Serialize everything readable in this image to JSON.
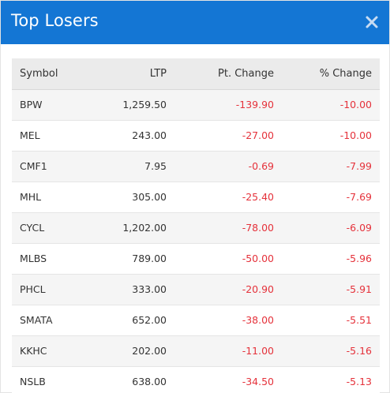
{
  "modal": {
    "title": "Top Losers"
  },
  "table": {
    "headers": {
      "symbol": "Symbol",
      "ltp": "LTP",
      "pt_change": "Pt. Change",
      "pct_change": "% Change"
    },
    "rows": [
      {
        "symbol": "BPW",
        "ltp": "1,259.50",
        "pt_change": "-139.90",
        "pct_change": "-10.00"
      },
      {
        "symbol": "MEL",
        "ltp": "243.00",
        "pt_change": "-27.00",
        "pct_change": "-10.00"
      },
      {
        "symbol": "CMF1",
        "ltp": "7.95",
        "pt_change": "-0.69",
        "pct_change": "-7.99"
      },
      {
        "symbol": "MHL",
        "ltp": "305.00",
        "pt_change": "-25.40",
        "pct_change": "-7.69"
      },
      {
        "symbol": "CYCL",
        "ltp": "1,202.00",
        "pt_change": "-78.00",
        "pct_change": "-6.09"
      },
      {
        "symbol": "MLBS",
        "ltp": "789.00",
        "pt_change": "-50.00",
        "pct_change": "-5.96"
      },
      {
        "symbol": "PHCL",
        "ltp": "333.00",
        "pt_change": "-20.90",
        "pct_change": "-5.91"
      },
      {
        "symbol": "SMATA",
        "ltp": "652.00",
        "pt_change": "-38.00",
        "pct_change": "-5.51"
      },
      {
        "symbol": "KKHC",
        "ltp": "202.00",
        "pt_change": "-11.00",
        "pct_change": "-5.16"
      },
      {
        "symbol": "NSLB",
        "ltp": "638.00",
        "pt_change": "-34.50",
        "pct_change": "-5.13"
      }
    ]
  },
  "colors": {
    "header_bg": "#1476d4",
    "negative": "#e5323b"
  },
  "icons": {
    "close": "close-icon"
  }
}
